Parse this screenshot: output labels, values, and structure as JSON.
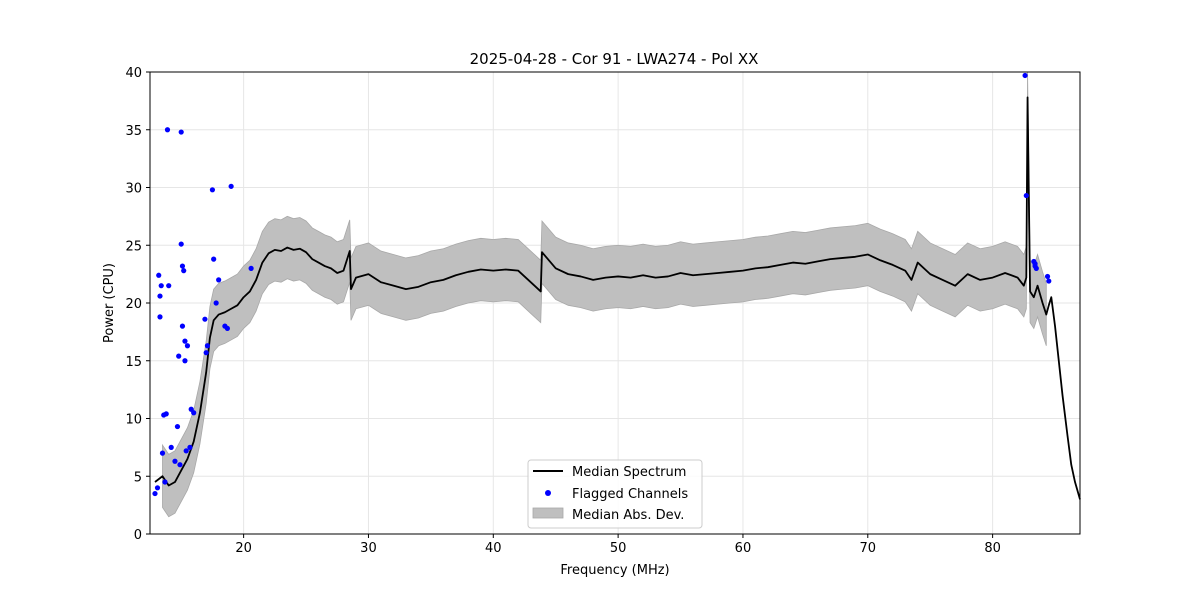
{
  "chart_data": {
    "type": "line",
    "title": "2025-04-28 - Cor 91 - LWA274 - Pol XX",
    "xlabel": "Frequency (MHz)",
    "ylabel": "Power (CPU)",
    "xlim": [
      12.5,
      87.0
    ],
    "ylim": [
      0,
      40
    ],
    "xticks": [
      20,
      30,
      40,
      50,
      60,
      70,
      80
    ],
    "yticks": [
      0,
      5,
      10,
      15,
      20,
      25,
      30,
      35,
      40
    ],
    "grid": true,
    "legend": {
      "position": "lower center",
      "entries": [
        "Median Spectrum",
        "Flagged Channels",
        "Median Abs. Dev."
      ]
    },
    "colors": {
      "median_spectrum": "#000000",
      "flagged_channels": "#0000ff",
      "mad_fill": "#bfbfbf",
      "grid": "#e6e6e6"
    },
    "series": [
      {
        "name": "Median Spectrum",
        "x": [
          12.9,
          13.5,
          14.0,
          14.5,
          15.0,
          15.5,
          16.0,
          16.5,
          17.0,
          17.3,
          17.6,
          18.0,
          18.5,
          19.0,
          19.5,
          20.0,
          20.5,
          21.0,
          21.5,
          22.0,
          22.5,
          23.0,
          23.5,
          24.0,
          24.5,
          25.0,
          25.5,
          26.0,
          26.5,
          27.0,
          27.5,
          28.0,
          28.5,
          28.6,
          29.0,
          30.0,
          31.0,
          32.0,
          33.0,
          34.0,
          35.0,
          36.0,
          37.0,
          38.0,
          39.0,
          40.0,
          41.0,
          42.0,
          43.0,
          43.8,
          43.9,
          45.0,
          46.0,
          47.0,
          48.0,
          49.0,
          50.0,
          51.0,
          52.0,
          53.0,
          54.0,
          55.0,
          56.0,
          57.0,
          58.0,
          59.0,
          60.0,
          61.0,
          62.0,
          63.0,
          64.0,
          65.0,
          66.0,
          67.0,
          68.0,
          69.0,
          70.0,
          71.0,
          72.0,
          73.0,
          73.5,
          74.0,
          75.0,
          76.0,
          77.0,
          78.0,
          79.0,
          80.0,
          81.0,
          81.5,
          82.0,
          82.5,
          82.7,
          82.8,
          83.0,
          83.3,
          83.6,
          84.0,
          84.3,
          84.5,
          84.7,
          85.0,
          85.3,
          85.6,
          86.0,
          86.3,
          86.6,
          87.0
        ],
        "y": [
          4.5,
          5.0,
          4.2,
          4.5,
          5.5,
          6.5,
          8.0,
          10.5,
          14.0,
          17.0,
          18.5,
          19.0,
          19.2,
          19.5,
          19.8,
          20.5,
          21.0,
          22.0,
          23.5,
          24.3,
          24.6,
          24.5,
          24.8,
          24.6,
          24.7,
          24.4,
          23.8,
          23.5,
          23.2,
          23.0,
          22.6,
          22.8,
          24.5,
          21.2,
          22.2,
          22.5,
          21.8,
          21.5,
          21.2,
          21.4,
          21.8,
          22.0,
          22.4,
          22.7,
          22.9,
          22.8,
          22.9,
          22.8,
          21.8,
          21.0,
          24.4,
          23.0,
          22.5,
          22.3,
          22.0,
          22.2,
          22.3,
          22.2,
          22.4,
          22.2,
          22.3,
          22.6,
          22.4,
          22.5,
          22.6,
          22.7,
          22.8,
          23.0,
          23.1,
          23.3,
          23.5,
          23.4,
          23.6,
          23.8,
          23.9,
          24.0,
          24.2,
          23.7,
          23.3,
          22.8,
          22.0,
          23.5,
          22.5,
          22.0,
          21.5,
          22.5,
          22.0,
          22.2,
          22.6,
          22.4,
          22.2,
          21.5,
          22.2,
          37.8,
          21.0,
          20.5,
          21.5,
          20.0,
          19.0,
          19.8,
          20.5,
          18.0,
          15.0,
          12.0,
          8.5,
          6.0,
          4.5,
          3.0
        ],
        "mad_half_width": 2.7
      },
      {
        "name": "Flagged Channels",
        "x": [
          12.9,
          13.1,
          13.2,
          13.3,
          13.3,
          13.4,
          13.5,
          13.6,
          13.7,
          13.8,
          13.9,
          14.0,
          14.2,
          14.5,
          14.7,
          14.8,
          14.9,
          15.0,
          15.0,
          15.1,
          15.1,
          15.2,
          15.3,
          15.3,
          15.4,
          15.5,
          15.7,
          15.8,
          16.0,
          16.9,
          17.0,
          17.1,
          17.5,
          17.6,
          17.8,
          18.0,
          18.5,
          18.7,
          19.0,
          20.6,
          82.6,
          82.7,
          83.3,
          83.4,
          83.4,
          83.5,
          84.4,
          84.5
        ],
        "y": [
          3.5,
          4.0,
          22.4,
          20.6,
          18.8,
          21.5,
          7.0,
          10.3,
          4.5,
          10.4,
          35.0,
          21.5,
          7.5,
          6.3,
          9.3,
          15.4,
          6.0,
          25.1,
          34.8,
          18.0,
          23.2,
          22.8,
          15.0,
          16.7,
          7.2,
          16.3,
          7.5,
          10.8,
          10.5,
          18.6,
          15.7,
          16.3,
          29.8,
          23.8,
          20.0,
          22.0,
          18.0,
          17.8,
          30.1,
          23.0,
          39.7,
          29.3,
          23.6,
          23.4,
          23.2,
          23.0,
          22.3,
          21.9
        ]
      }
    ]
  }
}
